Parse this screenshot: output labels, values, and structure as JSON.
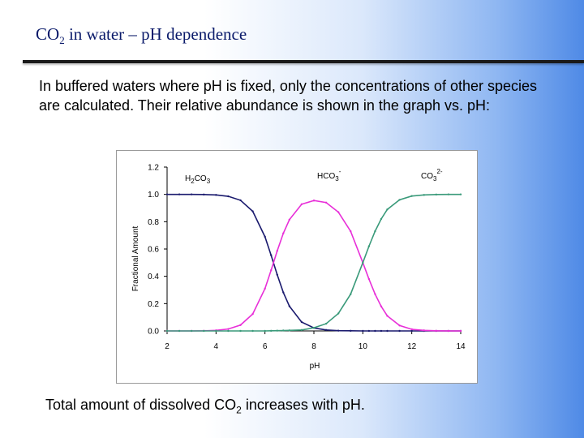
{
  "slide": {
    "title_main": "CO",
    "title_sub": "2",
    "title_rest": " in water – pH dependence",
    "intro": "In buffered waters where pH is fixed, only the concentrations of other species are calculated. Their relative abundance is shown in the graph vs. pH:",
    "footer_main": "Total amount of dissolved CO",
    "footer_sub": "2",
    "footer_rest": " increases with pH."
  },
  "chart_data": {
    "type": "line",
    "xlabel": "pH",
    "ylabel": "Fractional Amount",
    "xlim": [
      2,
      14
    ],
    "ylim": [
      0,
      1.2
    ],
    "x_ticks": [
      "2",
      "4",
      "6",
      "8",
      "10",
      "12",
      "14"
    ],
    "y_ticks": [
      "0.0",
      "0.2",
      "0.4",
      "0.6",
      "0.8",
      "1.0",
      "1.2"
    ],
    "grid": false,
    "x": [
      2.0,
      2.5,
      3.0,
      3.5,
      4.0,
      4.5,
      5.0,
      5.5,
      6.0,
      6.25,
      6.5,
      6.75,
      7.0,
      7.5,
      8.0,
      8.5,
      9.0,
      9.5,
      10.0,
      10.25,
      10.5,
      10.75,
      11.0,
      11.5,
      12.0,
      12.5,
      13.0,
      13.5,
      14.0
    ],
    "series": [
      {
        "name": "H2CO3",
        "color": "#1a1a6e",
        "values": [
          1.0,
          1.0,
          1.0,
          0.999,
          0.996,
          0.986,
          0.957,
          0.876,
          0.69,
          0.555,
          0.412,
          0.282,
          0.181,
          0.065,
          0.022,
          0.007,
          0.002,
          0.001,
          0.0,
          0.0,
          0.0,
          0.0,
          0.0,
          0.0,
          0.0,
          0.0,
          0.0,
          0.0,
          0.0
        ]
      },
      {
        "name": "HCO3-",
        "color": "#e82fd8",
        "values": [
          0.0,
          0.0,
          0.0,
          0.001,
          0.004,
          0.014,
          0.043,
          0.124,
          0.31,
          0.444,
          0.586,
          0.715,
          0.815,
          0.928,
          0.955,
          0.94,
          0.87,
          0.73,
          0.5,
          0.38,
          0.27,
          0.18,
          0.11,
          0.04,
          0.012,
          0.004,
          0.001,
          0.0,
          0.0
        ]
      },
      {
        "name": "CO32-",
        "color": "#3a9a7a",
        "values": [
          0.0,
          0.0,
          0.0,
          0.0,
          0.0,
          0.0,
          0.0,
          0.0,
          0.0,
          0.001,
          0.002,
          0.003,
          0.004,
          0.007,
          0.023,
          0.053,
          0.128,
          0.269,
          0.5,
          0.62,
          0.73,
          0.82,
          0.89,
          0.96,
          0.988,
          0.996,
          0.999,
          1.0,
          1.0
        ]
      }
    ],
    "labels": [
      {
        "main": "H",
        "sub1": "2",
        "mid": "CO",
        "sub2": "3",
        "sup": ""
      },
      {
        "main": "",
        "sub1": "",
        "mid": "HCO",
        "sub2": "3",
        "sup": "-"
      },
      {
        "main": "",
        "sub1": "",
        "mid": "CO",
        "sub2": "3",
        "sup": "2-"
      }
    ]
  }
}
